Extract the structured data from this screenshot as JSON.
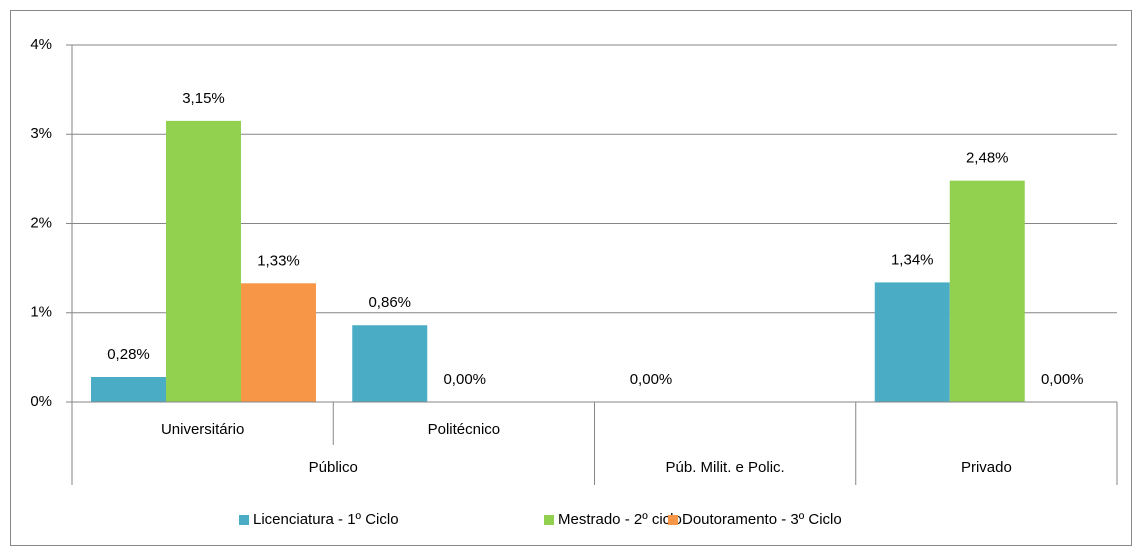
{
  "chart_data": {
    "type": "bar",
    "groups": [
      {
        "name": "Público",
        "categories": [
          "Universitário",
          "Politécnico"
        ]
      },
      {
        "name": "Púb. Milit. e Polic.",
        "categories": [
          null
        ]
      },
      {
        "name": "Privado",
        "categories": [
          null
        ]
      }
    ],
    "series": [
      {
        "name": "Licenciatura - 1º Ciclo",
        "color": "#4bacc6",
        "values": [
          0.28,
          0.86,
          0.0,
          1.34
        ],
        "value_labels": [
          "0,28%",
          "0,86%",
          "0,00%",
          "1,34%"
        ]
      },
      {
        "name": "Mestrado - 2º ciclo",
        "color": "#92d050",
        "values": [
          3.15,
          0.0,
          null,
          2.48
        ],
        "value_labels": [
          "3,15%",
          "0,00%",
          null,
          "2,48%"
        ]
      },
      {
        "name": "Doutoramento - 3º Ciclo",
        "color": "#f79646",
        "values": [
          1.33,
          null,
          null,
          0.0
        ],
        "value_labels": [
          "1,33%",
          null,
          null,
          "0,00%"
        ]
      }
    ],
    "ylim": [
      0,
      4
    ],
    "yticks": [
      {
        "value": 0,
        "label": "0%"
      },
      {
        "value": 1,
        "label": "1%"
      },
      {
        "value": 2,
        "label": "2%"
      },
      {
        "value": 3,
        "label": "3%"
      },
      {
        "value": 4,
        "label": "4%"
      }
    ],
    "grid": true,
    "legend": "bottom"
  }
}
